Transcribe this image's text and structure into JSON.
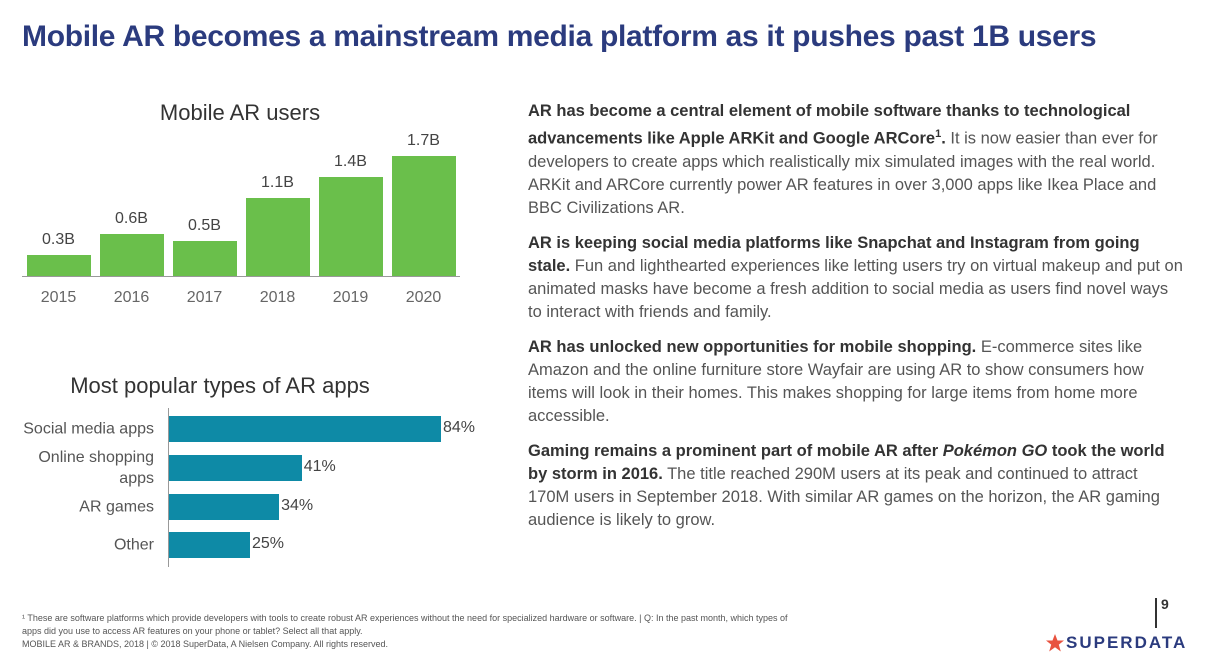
{
  "header": {
    "title": "Mobile AR becomes a mainstream media platform as it pushes past 1B users"
  },
  "chart_data": [
    {
      "type": "bar",
      "title": "Mobile AR users",
      "categories": [
        "2015",
        "2016",
        "2017",
        "2018",
        "2019",
        "2020"
      ],
      "values": [
        0.3,
        0.6,
        0.5,
        1.1,
        1.4,
        1.7
      ],
      "value_labels": [
        "0.3B",
        "0.6B",
        "0.5B",
        "1.1B",
        "1.4B",
        "1.7B"
      ],
      "color": "#6abf4b"
    },
    {
      "type": "hbar",
      "title": "Most popular types of AR apps",
      "categories": [
        "Social media apps",
        "Online shopping apps",
        "AR games",
        "Other"
      ],
      "values": [
        84,
        41,
        34,
        25
      ],
      "value_labels": [
        "84%",
        "41%",
        "34%",
        "25%"
      ],
      "color": "#0e8aa6"
    }
  ],
  "body": {
    "paragraphs": [
      [
        {
          "text": "AR has become a central element of mobile software thanks to technological advancements like Apple ARKit and Google ARCore",
          "style": "bold"
        },
        {
          "text": "1",
          "style": "sup"
        },
        {
          "text": ".",
          "style": "bold"
        },
        {
          "text": " It is now easier than ever for developers to create apps which realistically mix simulated images with the real world. ARKit and ARCore currently power AR features in over 3,000 apps like Ikea Place and BBC Civilizations AR.",
          "style": "normal"
        }
      ],
      [
        {
          "text": "AR is keeping social media platforms like Snapchat and Instagram from going stale.",
          "style": "bold"
        },
        {
          "text": " Fun and lighthearted experiences like letting users try on virtual makeup and put on animated masks have become a fresh addition to social media as users find novel ways to interact with friends and family.",
          "style": "normal"
        }
      ],
      [
        {
          "text": "AR has unlocked new opportunities for mobile shopping.",
          "style": "bold"
        },
        {
          "text": " E-commerce sites like Amazon and the online furniture store Wayfair are using AR to show consumers how items will look in their homes. This makes shopping for large items from home more accessible.",
          "style": "normal"
        }
      ],
      [
        {
          "text": "Gaming remains a prominent part of mobile AR after ",
          "style": "bold"
        },
        {
          "text": "Pokémon GO",
          "style": "bold-italic"
        },
        {
          "text": " took the world by storm in 2016.",
          "style": "bold"
        },
        {
          "text": " The title reached 290M users at its peak and continued to attract 170M users in September 2018. With similar AR games on the horizon, the AR gaming audience is likely to grow.",
          "style": "normal"
        }
      ]
    ]
  },
  "footer": {
    "footnote": "¹ These are software platforms which provide developers with tools to create robust AR experiences without the need for specialized hardware or software. | Q: In the past month, which types of apps did you use to access AR features on your phone or tablet? Select all that apply.",
    "copyright": "MOBILE AR & BRANDS, 2018  |  © 2018 SuperData, A Nielsen Company. All rights reserved.",
    "page_number": "9",
    "logo": "SUPERDATA"
  }
}
